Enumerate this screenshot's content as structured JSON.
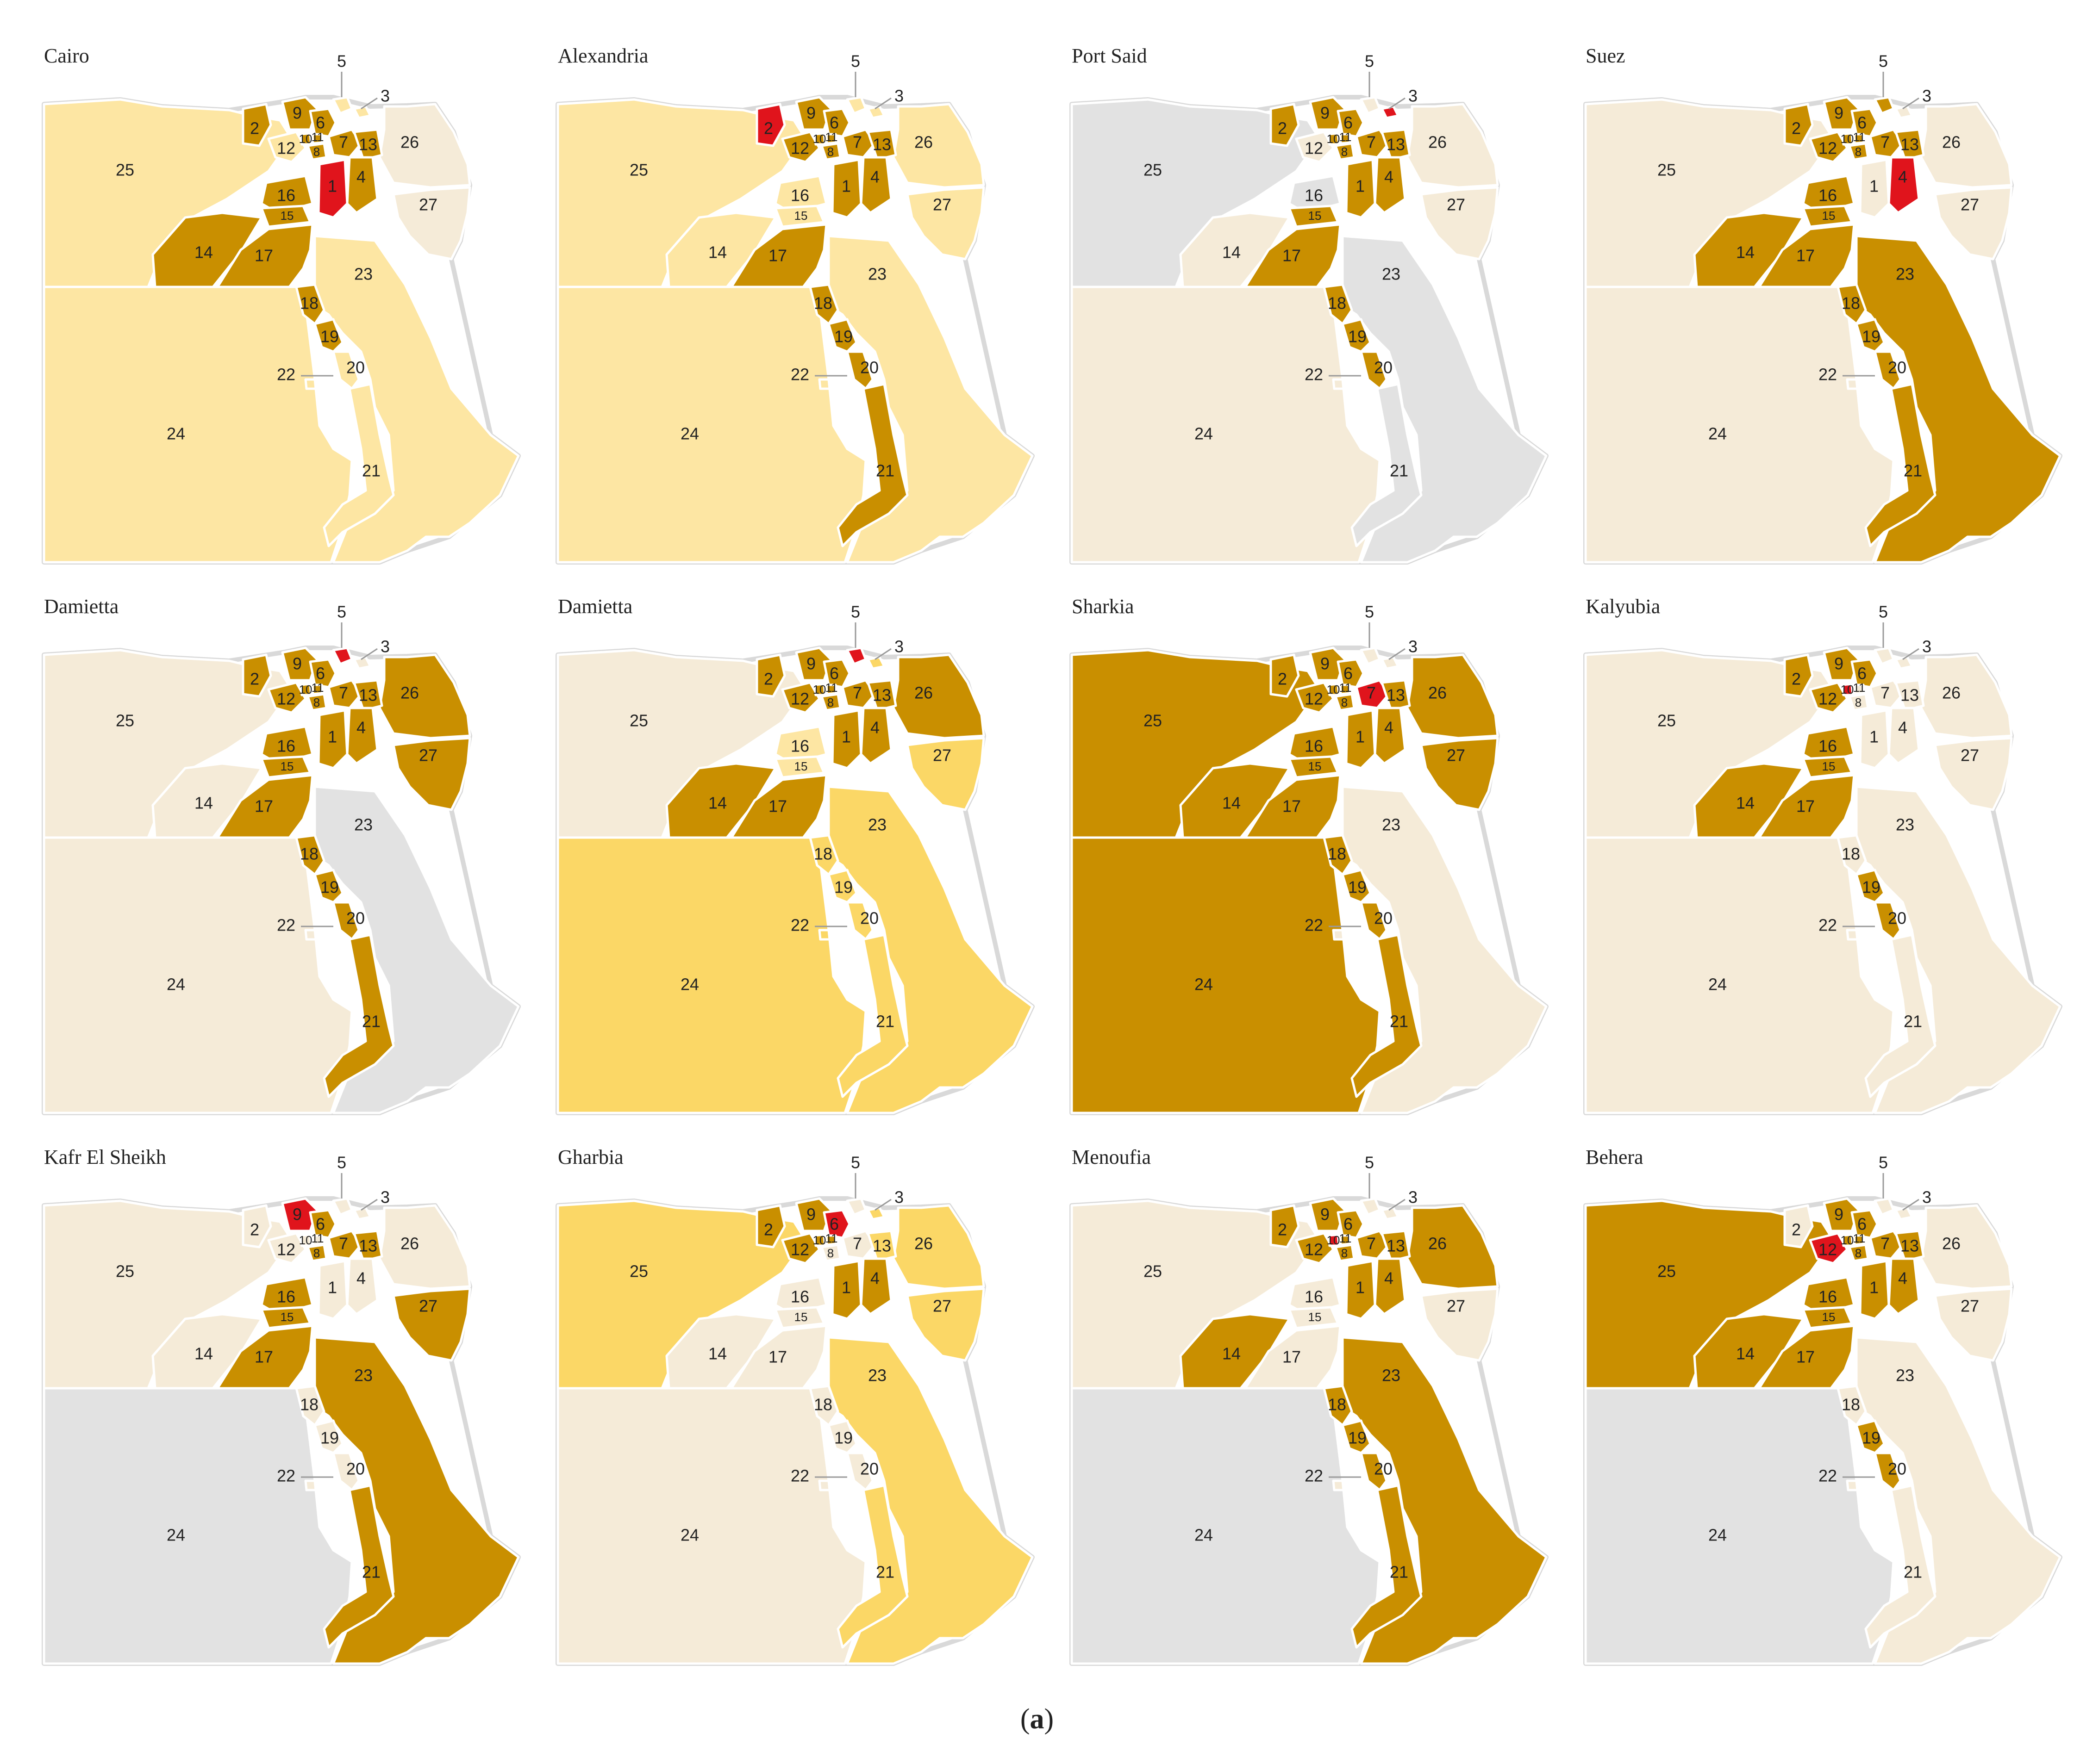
{
  "caption": {
    "open": "(",
    "letter": "a",
    "close": ")"
  },
  "legend_colors": {
    "focus": "#e0141c",
    "dark": "#c98f00",
    "light": "#fde6a3",
    "medium": "#fbd766",
    "pale": "#f5ebd8",
    "gray": "#e2e2e2",
    "unset": "#f5ebd8"
  },
  "region_labels": [
    "1",
    "2",
    "3",
    "4",
    "5",
    "6",
    "7",
    "8",
    "9",
    "10",
    "11",
    "12",
    "13",
    "14",
    "15",
    "16",
    "17",
    "18",
    "19",
    "20",
    "21",
    "22",
    "23",
    "24",
    "25",
    "26",
    "27"
  ],
  "panels": [
    {
      "title": "Cairo",
      "focus": [
        "1"
      ],
      "base": "light",
      "classes": {
        "dark": [
          "2",
          "4",
          "6",
          "7",
          "8",
          "9",
          "10",
          "11",
          "13",
          "14",
          "15",
          "16",
          "17",
          "18",
          "19"
        ],
        "pale": [
          "26",
          "27"
        ]
      }
    },
    {
      "title": "Alexandria",
      "focus": [
        "2"
      ],
      "base": "light",
      "classes": {
        "dark": [
          "1",
          "4",
          "6",
          "7",
          "8",
          "9",
          "10",
          "11",
          "12",
          "13",
          "17",
          "18",
          "19",
          "20",
          "21"
        ]
      }
    },
    {
      "title": "Port Said",
      "focus": [
        "3"
      ],
      "base": "pale",
      "classes": {
        "dark": [
          "1",
          "2",
          "4",
          "6",
          "7",
          "8",
          "9",
          "10",
          "11",
          "13",
          "15",
          "17",
          "18",
          "19",
          "20"
        ],
        "gray": [
          "16",
          "21",
          "23",
          "25"
        ]
      }
    },
    {
      "title": "Suez",
      "focus": [
        "4"
      ],
      "base": "pale",
      "classes": {
        "dark": [
          "2",
          "5",
          "6",
          "7",
          "8",
          "9",
          "10",
          "11",
          "12",
          "13",
          "14",
          "15",
          "16",
          "17",
          "18",
          "19",
          "20",
          "21",
          "23"
        ]
      }
    },
    {
      "title": "Damietta",
      "focus": [
        "5"
      ],
      "base": "pale",
      "classes": {
        "dark": [
          "1",
          "2",
          "4",
          "6",
          "7",
          "8",
          "9",
          "10",
          "11",
          "12",
          "13",
          "15",
          "16",
          "17",
          "18",
          "19",
          "20",
          "21",
          "26",
          "27"
        ],
        "gray": [
          "23"
        ]
      }
    },
    {
      "title": "Damietta",
      "focus": [
        "5"
      ],
      "base": "medium",
      "classes": {
        "dark": [
          "1",
          "2",
          "4",
          "6",
          "7",
          "8",
          "9",
          "10",
          "11",
          "12",
          "13",
          "14",
          "17",
          "26"
        ],
        "pale": [
          "25"
        ],
        "light": [
          "15",
          "16"
        ]
      }
    },
    {
      "title": "Sharkia",
      "focus": [
        "7"
      ],
      "base": "pale",
      "classes": {
        "dark": [
          "1",
          "2",
          "4",
          "6",
          "8",
          "9",
          "10",
          "11",
          "12",
          "13",
          "14",
          "15",
          "16",
          "17",
          "18",
          "19",
          "20",
          "21",
          "24",
          "25",
          "26",
          "27"
        ]
      }
    },
    {
      "title": "Kalyubia",
      "focus": [
        "10"
      ],
      "base": "pale",
      "classes": {
        "dark": [
          "2",
          "6",
          "9",
          "12",
          "14",
          "15",
          "16",
          "17",
          "19",
          "20"
        ]
      }
    },
    {
      "title": "Kafr El Sheikh",
      "focus": [
        "9"
      ],
      "base": "pale",
      "classes": {
        "dark": [
          "6",
          "7",
          "8",
          "13",
          "15",
          "16",
          "17",
          "21",
          "23",
          "27"
        ],
        "gray": [
          "24"
        ]
      }
    },
    {
      "title": "Gharbia",
      "focus": [
        "6"
      ],
      "base": "pale",
      "classes": {
        "dark": [
          "1",
          "2",
          "4",
          "9",
          "10",
          "11",
          "12"
        ],
        "medium": [
          "3",
          "13",
          "21",
          "23",
          "25",
          "26",
          "27"
        ]
      }
    },
    {
      "title": "Menoufia",
      "focus": [
        "10"
      ],
      "base": "pale",
      "classes": {
        "dark": [
          "1",
          "2",
          "4",
          "6",
          "7",
          "8",
          "9",
          "11",
          "12",
          "13",
          "14",
          "18",
          "19",
          "20",
          "21",
          "23",
          "26"
        ],
        "gray": [
          "24"
        ]
      }
    },
    {
      "title": "Behera",
      "focus": [
        "12"
      ],
      "base": "pale",
      "classes": {
        "dark": [
          "1",
          "4",
          "6",
          "7",
          "8",
          "9",
          "10",
          "11",
          "13",
          "14",
          "15",
          "16",
          "17",
          "19",
          "20",
          "25"
        ],
        "gray": [
          "24"
        ]
      }
    }
  ]
}
